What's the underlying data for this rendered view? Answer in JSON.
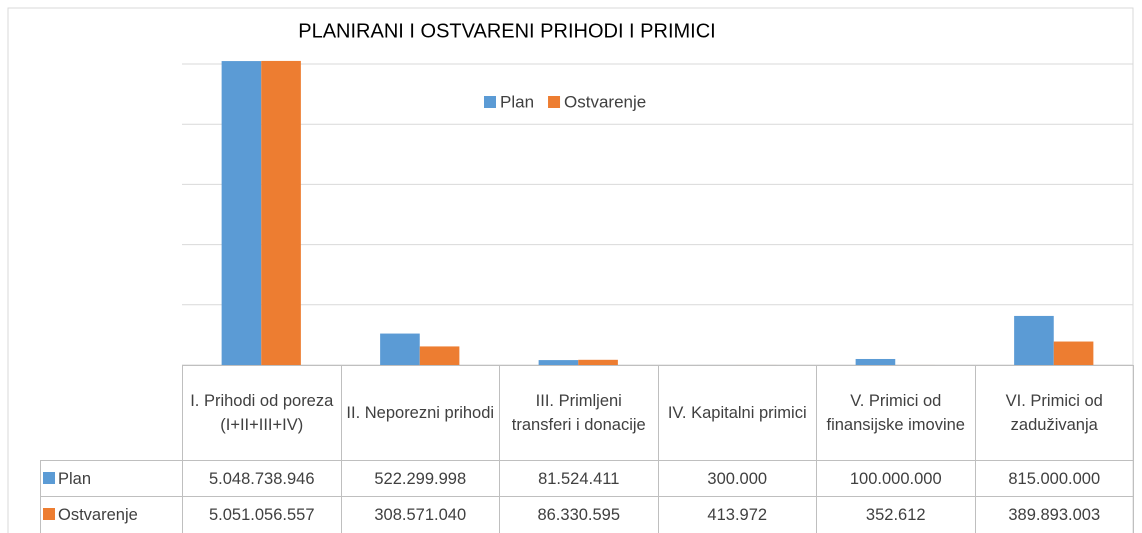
{
  "chart_data": {
    "type": "bar",
    "title": "PLANIRANI I OSTVARENI PRIHODI I PRIMICI",
    "categories": [
      "I. Prihodi od poreza (I+II+III+IV)",
      "II. Neporezni prihodi",
      "III. Primljeni transferi i donacije",
      "IV. Kapitalni primici",
      "V. Primici od finansijske imovine",
      "VI. Primici od zaduživanja"
    ],
    "series": [
      {
        "name": "Plan",
        "color": "#5b9bd5",
        "values": [
          5048738946,
          522299998,
          81524411,
          300000,
          100000000,
          815000000
        ],
        "value_labels": [
          "5.048.738.946",
          "522.299.998",
          "81.524.411",
          "300.000",
          "100.000.000",
          "815.000.000"
        ]
      },
      {
        "name": "Ostvarenje",
        "color": "#ed7d31",
        "values": [
          5051056557,
          308571040,
          86330595,
          413972,
          352612,
          389893003
        ],
        "value_labels": [
          "5.051.056.557",
          "308.571.040",
          "86.330.595",
          "413.972",
          "352.612",
          "389.893.003"
        ]
      }
    ],
    "ylim": [
      0,
      5000000000
    ],
    "yticks": [
      0,
      1000000000,
      2000000000,
      3000000000,
      4000000000,
      5000000000
    ],
    "grid": true,
    "legend": "top"
  }
}
